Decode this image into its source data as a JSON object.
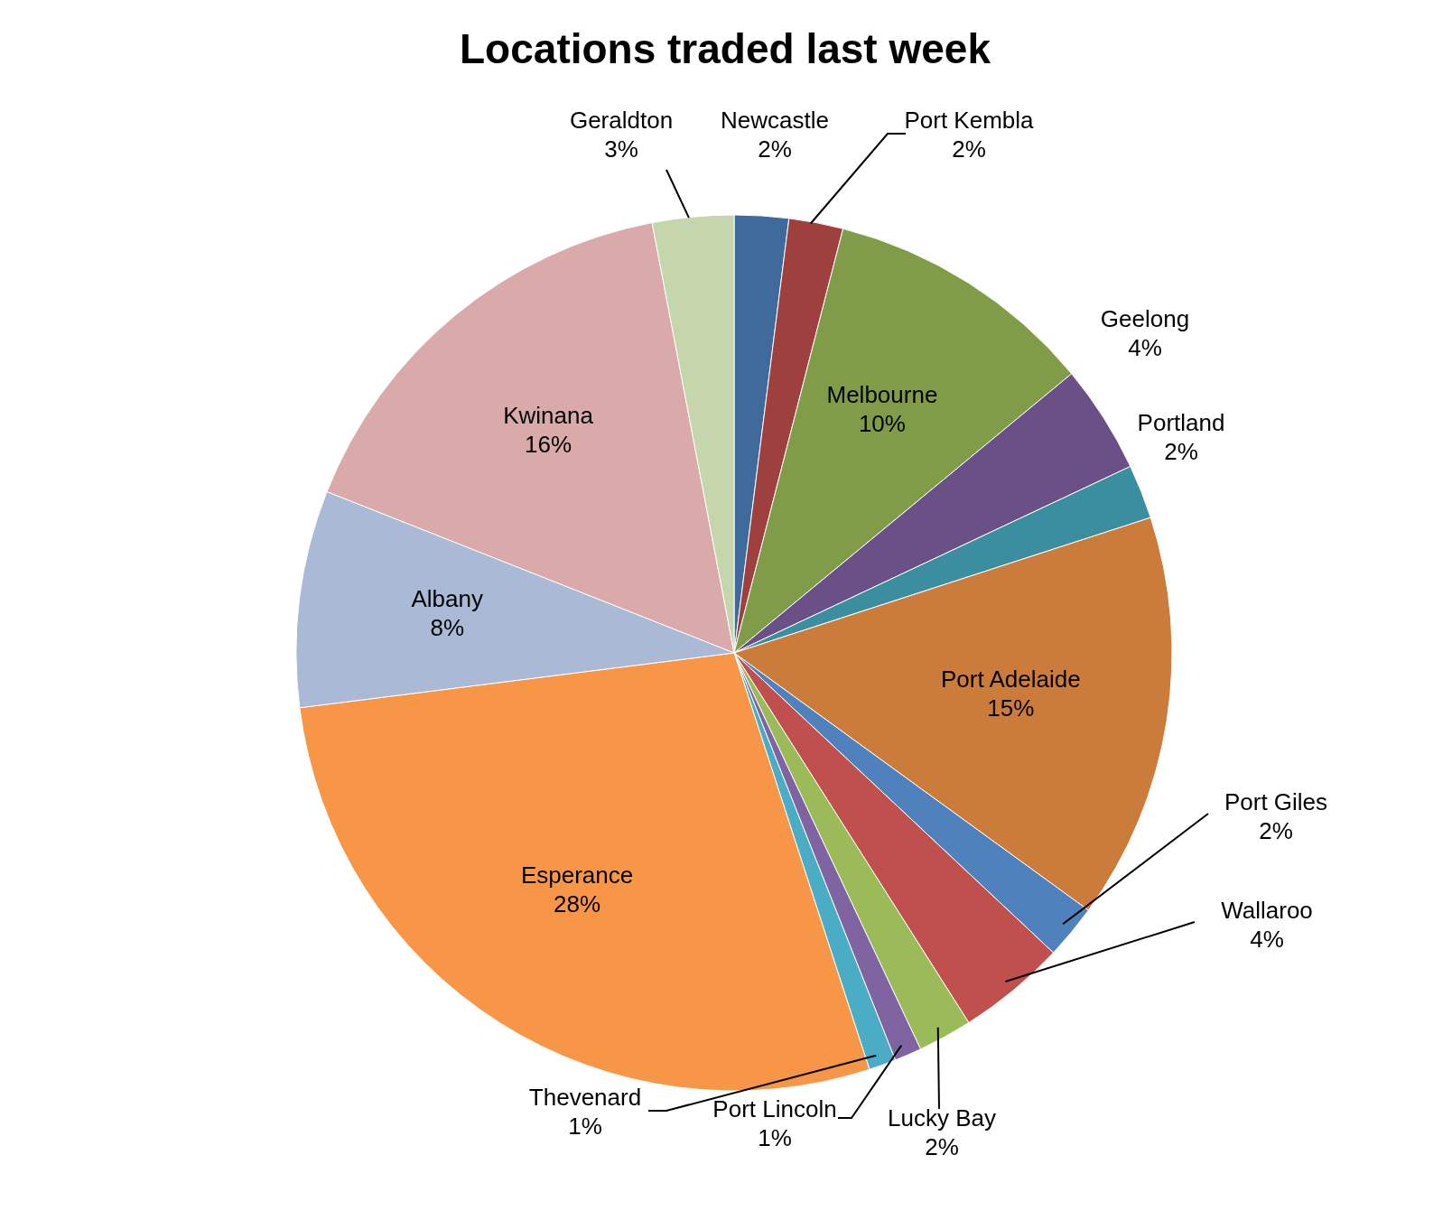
{
  "chart_data": {
    "type": "pie",
    "title": "Locations traded last week",
    "categories": [
      "Newcastle",
      "Port Kembla",
      "Melbourne",
      "Geelong",
      "Portland",
      "Port Adelaide",
      "Port Giles",
      "Wallaroo",
      "Lucky Bay",
      "Port Lincoln",
      "Thevenard",
      "Esperance",
      "Albany",
      "Kwinana",
      "Geraldton"
    ],
    "values": [
      2,
      2,
      10,
      4,
      2,
      15,
      2,
      4,
      2,
      1,
      1,
      28,
      8,
      16,
      3
    ],
    "value_labels": [
      "2%",
      "2%",
      "10%",
      "4%",
      "2%",
      "15%",
      "2%",
      "4%",
      "2%",
      "1%",
      "1%",
      "28%",
      "8%",
      "16%",
      "3%"
    ],
    "colors": [
      "#3f6a9c",
      "#9e413e",
      "#809c48",
      "#6a5087",
      "#3a8ea0",
      "#cc7c3a",
      "#4f81bd",
      "#c0504d",
      "#9bbb59",
      "#8064a2",
      "#4bacc6",
      "#f79646",
      "#aab9d6",
      "#d9aaa9",
      "#c6d6ac"
    ]
  }
}
